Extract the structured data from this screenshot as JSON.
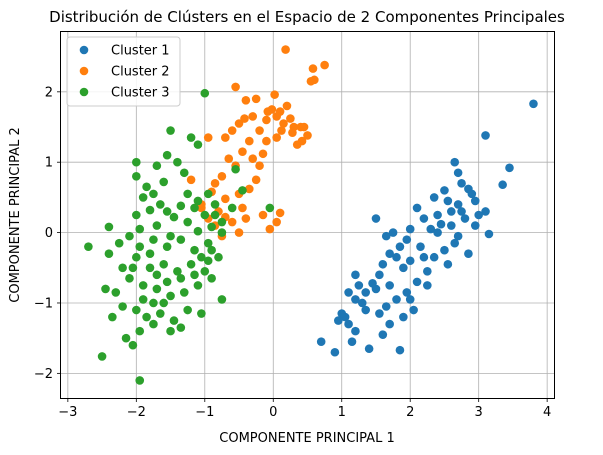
{
  "chart_data": {
    "type": "scatter",
    "title": "Distribución de Clústers en el Espacio de 2 Componentes Principales",
    "xlabel": "COMPONENTE PRINCIPAL 1",
    "ylabel": "COMPONENTE PRINCIPAL 2",
    "xlim": [
      -3.1,
      4.1
    ],
    "ylim": [
      -2.35,
      2.85
    ],
    "xticks": [
      -3,
      -2,
      -1,
      0,
      1,
      2,
      3,
      4
    ],
    "yticks": [
      -2,
      -1,
      0,
      1,
      2
    ],
    "grid": true,
    "legend_position": "top-left",
    "series": [
      {
        "name": "Cluster 1",
        "color": "#1f77b4",
        "points": [
          [
            3.8,
            1.83
          ],
          [
            3.1,
            1.38
          ],
          [
            3.45,
            0.92
          ],
          [
            3.35,
            0.68
          ],
          [
            2.65,
            1.0
          ],
          [
            2.7,
            0.85
          ],
          [
            2.85,
            0.62
          ],
          [
            2.75,
            0.7
          ],
          [
            2.95,
            0.45
          ],
          [
            2.5,
            0.6
          ],
          [
            2.6,
            0.3
          ],
          [
            3.1,
            0.3
          ],
          [
            2.95,
            0.1
          ],
          [
            2.8,
            0.2
          ],
          [
            3.15,
            -0.02
          ],
          [
            2.7,
            -0.05
          ],
          [
            2.55,
            0.45
          ],
          [
            2.4,
            0.25
          ],
          [
            2.3,
            0.05
          ],
          [
            2.2,
            0.2
          ],
          [
            2.1,
            0.35
          ],
          [
            2.0,
            0.05
          ],
          [
            1.95,
            -0.1
          ],
          [
            1.85,
            -0.2
          ],
          [
            1.8,
            -0.35
          ],
          [
            1.75,
            0.0
          ],
          [
            1.7,
            -0.3
          ],
          [
            1.6,
            -0.45
          ],
          [
            1.55,
            -0.6
          ],
          [
            1.5,
            -0.8
          ],
          [
            1.45,
            -0.72
          ],
          [
            1.35,
            -0.85
          ],
          [
            1.3,
            -1.0
          ],
          [
            1.25,
            -0.75
          ],
          [
            1.2,
            -0.6
          ],
          [
            1.1,
            -0.85
          ],
          [
            1.05,
            -1.2
          ],
          [
            1.0,
            -1.15
          ],
          [
            0.95,
            -1.25
          ],
          [
            1.1,
            -1.3
          ],
          [
            1.2,
            -1.4
          ],
          [
            1.15,
            -1.55
          ],
          [
            0.9,
            -1.7
          ],
          [
            0.7,
            -1.55
          ],
          [
            1.4,
            -1.65
          ],
          [
            1.6,
            -1.45
          ],
          [
            1.85,
            -1.67
          ],
          [
            1.9,
            -1.2
          ],
          [
            2.05,
            -1.1
          ],
          [
            1.95,
            -0.85
          ],
          [
            2.1,
            -0.7
          ],
          [
            2.25,
            -0.55
          ],
          [
            2.35,
            -0.35
          ],
          [
            2.5,
            -0.25
          ],
          [
            2.65,
            -0.15
          ],
          [
            2.85,
            -0.3
          ],
          [
            2.55,
            -0.45
          ],
          [
            2.25,
            -0.75
          ],
          [
            1.65,
            -1.05
          ],
          [
            1.55,
            -1.15
          ],
          [
            1.8,
            -0.95
          ],
          [
            1.7,
            -0.75
          ],
          [
            2.0,
            -0.4
          ],
          [
            2.15,
            -0.2
          ],
          [
            2.4,
            0.0
          ],
          [
            2.6,
            0.1
          ],
          [
            2.7,
            0.4
          ],
          [
            2.9,
            0.55
          ],
          [
            3.0,
            0.25
          ],
          [
            2.45,
            0.12
          ],
          [
            2.35,
            0.5
          ],
          [
            1.5,
            0.2
          ],
          [
            1.65,
            -0.05
          ],
          [
            1.9,
            -0.5
          ],
          [
            1.35,
            -1.1
          ],
          [
            1.2,
            -0.95
          ],
          [
            1.7,
            -1.3
          ],
          [
            2.0,
            -0.95
          ],
          [
            2.2,
            -0.35
          ],
          [
            2.75,
            0.3
          ]
        ]
      },
      {
        "name": "Cluster 2",
        "color": "#ff7f0e",
        "points": [
          [
            0.18,
            2.6
          ],
          [
            0.75,
            2.38
          ],
          [
            0.58,
            2.33
          ],
          [
            0.6,
            2.17
          ],
          [
            0.55,
            2.15
          ],
          [
            -0.55,
            2.07
          ],
          [
            -0.4,
            1.88
          ],
          [
            -0.25,
            1.9
          ],
          [
            0.02,
            1.96
          ],
          [
            -0.02,
            1.75
          ],
          [
            -0.08,
            1.72
          ],
          [
            0.1,
            1.72
          ],
          [
            0.2,
            1.8
          ],
          [
            -0.3,
            1.65
          ],
          [
            -0.5,
            1.55
          ],
          [
            -0.42,
            1.62
          ],
          [
            0.05,
            1.65
          ],
          [
            0.15,
            1.55
          ],
          [
            0.25,
            1.62
          ],
          [
            0.4,
            1.5
          ],
          [
            0.5,
            1.38
          ],
          [
            0.42,
            1.3
          ],
          [
            0.35,
            1.25
          ],
          [
            0.12,
            1.45
          ],
          [
            0.28,
            1.42
          ],
          [
            0.05,
            1.35
          ],
          [
            -0.1,
            1.3
          ],
          [
            -0.2,
            1.45
          ],
          [
            -0.35,
            1.3
          ],
          [
            -0.6,
            1.45
          ],
          [
            -0.7,
            1.35
          ],
          [
            -0.95,
            1.35
          ],
          [
            -0.15,
            1.12
          ],
          [
            -0.2,
            0.95
          ],
          [
            -0.3,
            1.05
          ],
          [
            -0.45,
            1.15
          ],
          [
            -0.55,
            0.95
          ],
          [
            -0.65,
            1.05
          ],
          [
            -0.75,
            0.8
          ],
          [
            -0.85,
            0.7
          ],
          [
            -0.9,
            0.58
          ],
          [
            -1.05,
            0.4
          ],
          [
            -1.2,
            0.75
          ],
          [
            -0.95,
            0.2
          ],
          [
            -0.8,
            0.3
          ],
          [
            -0.7,
            0.48
          ],
          [
            -0.5,
            0.55
          ],
          [
            -0.35,
            0.62
          ],
          [
            -0.25,
            0.75
          ],
          [
            -0.45,
            0.35
          ],
          [
            -0.6,
            0.15
          ],
          [
            -0.5,
            0.0
          ],
          [
            -0.75,
            -0.05
          ],
          [
            -0.85,
            0.1
          ],
          [
            0.1,
            0.28
          ],
          [
            0.05,
            0.15
          ],
          [
            -0.05,
            0.05
          ],
          [
            -0.15,
            0.25
          ],
          [
            -0.4,
            0.2
          ],
          [
            -0.7,
            0.22
          ],
          [
            -1.05,
            0.35
          ],
          [
            0.3,
            1.5
          ],
          [
            -0.1,
            1.6
          ],
          [
            0.45,
            1.5
          ]
        ]
      },
      {
        "name": "Cluster 3",
        "color": "#2ca02c",
        "points": [
          [
            -1.0,
            1.98
          ],
          [
            -1.5,
            1.45
          ],
          [
            -1.2,
            1.35
          ],
          [
            -1.1,
            1.25
          ],
          [
            -1.55,
            1.1
          ],
          [
            -2.0,
            1.0
          ],
          [
            -1.7,
            0.95
          ],
          [
            -1.4,
            1.0
          ],
          [
            -1.3,
            0.85
          ],
          [
            -1.6,
            0.72
          ],
          [
            -1.85,
            0.65
          ],
          [
            -1.75,
            0.55
          ],
          [
            -2.0,
            0.8
          ],
          [
            -1.25,
            0.55
          ],
          [
            -1.1,
            0.45
          ],
          [
            -0.95,
            0.55
          ],
          [
            -0.85,
            0.4
          ],
          [
            -1.35,
            0.38
          ],
          [
            -1.55,
            0.3
          ],
          [
            -1.8,
            0.32
          ],
          [
            -2.0,
            0.25
          ],
          [
            -1.95,
            0.05
          ],
          [
            -1.7,
            0.1
          ],
          [
            -1.5,
            -0.05
          ],
          [
            -1.25,
            0.15
          ],
          [
            -1.1,
            0.02
          ],
          [
            -0.9,
            0.08
          ],
          [
            -0.75,
            0.0
          ],
          [
            -0.95,
            -0.15
          ],
          [
            -1.15,
            -0.25
          ],
          [
            -1.35,
            -0.1
          ],
          [
            -1.55,
            -0.2
          ],
          [
            -1.75,
            -0.1
          ],
          [
            -1.95,
            -0.2
          ],
          [
            -2.1,
            -0.05
          ],
          [
            -2.25,
            -0.15
          ],
          [
            -2.4,
            -0.3
          ],
          [
            -2.2,
            -0.5
          ],
          [
            -2.0,
            -0.35
          ],
          [
            -1.8,
            -0.3
          ],
          [
            -1.6,
            -0.45
          ],
          [
            -1.4,
            -0.55
          ],
          [
            -1.2,
            -0.45
          ],
          [
            -1.0,
            -0.55
          ],
          [
            -0.8,
            -0.35
          ],
          [
            -0.9,
            -0.65
          ],
          [
            -1.1,
            -0.75
          ],
          [
            -1.3,
            -0.85
          ],
          [
            -1.5,
            -0.9
          ],
          [
            -1.7,
            -0.8
          ],
          [
            -1.9,
            -0.75
          ],
          [
            -2.1,
            -0.65
          ],
          [
            -2.3,
            -0.85
          ],
          [
            -2.45,
            -0.8
          ],
          [
            -2.2,
            -1.05
          ],
          [
            -2.0,
            -1.1
          ],
          [
            -1.85,
            -1.2
          ],
          [
            -1.65,
            -1.15
          ],
          [
            -1.45,
            -1.25
          ],
          [
            -1.25,
            -1.1
          ],
          [
            -1.05,
            -1.15
          ],
          [
            -1.35,
            -1.35
          ],
          [
            -1.5,
            -1.4
          ],
          [
            -1.75,
            -1.3
          ],
          [
            -1.95,
            -1.4
          ],
          [
            -2.15,
            -1.5
          ],
          [
            -2.35,
            -1.2
          ],
          [
            -2.5,
            -1.76
          ],
          [
            -2.7,
            -0.2
          ],
          [
            -2.4,
            0.08
          ],
          [
            -2.05,
            -1.6
          ],
          [
            -1.95,
            -2.1
          ],
          [
            -0.75,
            -0.95
          ],
          [
            -0.55,
            0.9
          ],
          [
            -0.45,
            0.6
          ],
          [
            -0.6,
            0.35
          ],
          [
            -0.75,
            0.15
          ],
          [
            -0.9,
            -0.25
          ],
          [
            -1.05,
            -0.35
          ],
          [
            -0.05,
            0.35
          ],
          [
            -1.9,
            0.5
          ],
          [
            -1.65,
            0.4
          ],
          [
            -1.45,
            0.22
          ],
          [
            -1.15,
            0.35
          ],
          [
            -1.0,
            0.25
          ],
          [
            -0.85,
            0.25
          ],
          [
            -1.7,
            -0.6
          ],
          [
            -1.55,
            -0.7
          ],
          [
            -1.8,
            -0.5
          ],
          [
            -2.05,
            -0.5
          ],
          [
            -1.6,
            -1.0
          ],
          [
            -1.35,
            -0.65
          ],
          [
            -1.15,
            -0.6
          ],
          [
            -0.95,
            -0.4
          ],
          [
            -1.9,
            -0.95
          ],
          [
            -1.75,
            -1.0
          ]
        ]
      }
    ]
  }
}
